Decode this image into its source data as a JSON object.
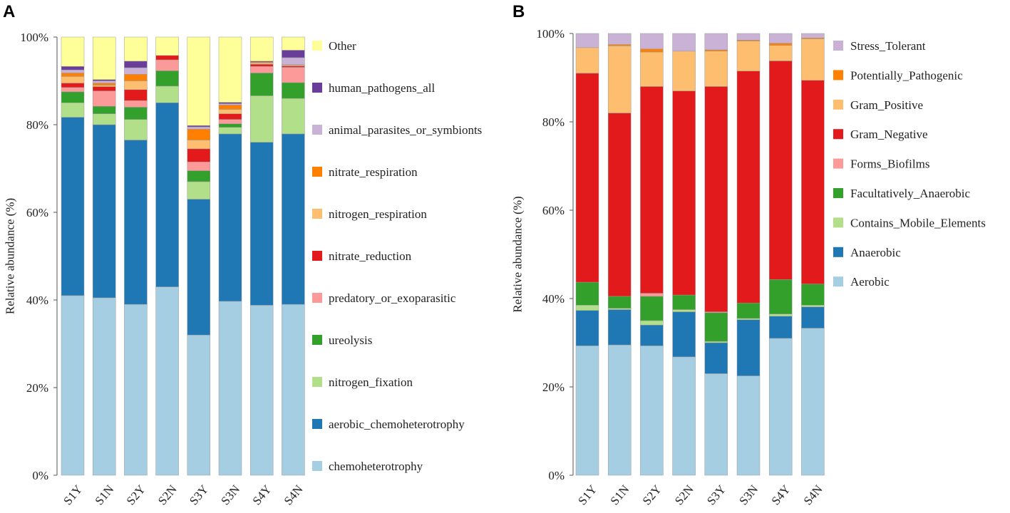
{
  "chart_data": [
    {
      "type": "bar",
      "stacked": true,
      "panel_label": "A",
      "ylabel": "Relative abundance (%)",
      "ylim": [
        0,
        100
      ],
      "yticks": [
        "0%",
        "20%",
        "40%",
        "60%",
        "80%",
        "100%"
      ],
      "categories": [
        "S1Y",
        "S1N",
        "S2Y",
        "S2N",
        "S3Y",
        "S3N",
        "S4Y",
        "S4N"
      ],
      "legend_position": "right",
      "series": [
        {
          "name": "chemoheterotrophy",
          "color": "#a6cee3",
          "values": [
            41.0,
            40.5,
            39.0,
            43.0,
            32.0,
            39.7,
            38.8,
            39.0
          ]
        },
        {
          "name": "aerobic_chemoheterotrophy",
          "color": "#1f78b4",
          "values": [
            40.7,
            39.5,
            37.5,
            42.0,
            31.0,
            38.2,
            37.2,
            38.9
          ]
        },
        {
          "name": "nitrogen_fixation",
          "color": "#b2df8a",
          "values": [
            3.3,
            2.5,
            4.7,
            3.8,
            4.0,
            1.5,
            10.6,
            8.1
          ]
        },
        {
          "name": "ureolysis",
          "color": "#33a02c",
          "values": [
            2.5,
            1.7,
            2.8,
            3.5,
            2.5,
            0.8,
            5.2,
            3.6
          ]
        },
        {
          "name": "predatory_or_exoparasitic",
          "color": "#fb9a99",
          "values": [
            1.0,
            3.5,
            1.5,
            2.5,
            2.0,
            1.0,
            1.5,
            3.5
          ]
        },
        {
          "name": "nitrate_reduction",
          "color": "#e31a1c",
          "values": [
            1.0,
            1.0,
            2.5,
            1.0,
            3.0,
            1.3,
            0.5,
            0.3
          ]
        },
        {
          "name": "nitrogen_respiration",
          "color": "#fdbf6f",
          "values": [
            1.5,
            0.3,
            2.0,
            0.0,
            2.0,
            1.0,
            0.3,
            0.2
          ]
        },
        {
          "name": "nitrate_respiration",
          "color": "#ff7f00",
          "values": [
            0.8,
            0.5,
            1.5,
            0.0,
            2.5,
            1.0,
            0.2,
            0.1
          ]
        },
        {
          "name": "animal_parasites_or_symbionts",
          "color": "#cab2d6",
          "values": [
            0.7,
            0.5,
            1.5,
            0.0,
            0.5,
            0.3,
            0.0,
            1.6
          ]
        },
        {
          "name": "human_pathogens_all",
          "color": "#6a3d9a",
          "values": [
            0.8,
            0.3,
            1.5,
            0.0,
            0.3,
            0.3,
            0.2,
            1.7
          ]
        },
        {
          "name": "Other",
          "color": "#ffff99",
          "values": [
            6.7,
            9.7,
            5.5,
            4.2,
            20.2,
            14.9,
            5.5,
            3.0
          ]
        }
      ]
    },
    {
      "type": "bar",
      "stacked": true,
      "panel_label": "B",
      "ylabel": "Relative abundance (%)",
      "ylim": [
        0,
        100
      ],
      "yticks": [
        "0%",
        "20%",
        "40%",
        "60%",
        "80%",
        "100%"
      ],
      "categories": [
        "S1Y",
        "S1N",
        "S2Y",
        "S2N",
        "S3Y",
        "S3N",
        "S4Y",
        "S4N"
      ],
      "legend_position": "right",
      "series": [
        {
          "name": "Aerobic",
          "color": "#a6cee3",
          "values": [
            29.3,
            29.5,
            29.3,
            26.8,
            23.0,
            22.5,
            31.0,
            33.3
          ]
        },
        {
          "name": "Anaerobic",
          "color": "#1f78b4",
          "values": [
            8.0,
            8.0,
            4.7,
            10.2,
            7.0,
            12.7,
            5.0,
            4.8
          ]
        },
        {
          "name": "Contains_Mobile_Elements",
          "color": "#b2df8a",
          "values": [
            1.2,
            0.3,
            1.0,
            0.5,
            0.3,
            0.3,
            0.5,
            0.4
          ]
        },
        {
          "name": "Facultatively_Anaerobic",
          "color": "#33a02c",
          "values": [
            5.2,
            2.7,
            5.5,
            3.3,
            6.5,
            3.5,
            7.8,
            4.8
          ]
        },
        {
          "name": "Forms_Biofilms",
          "color": "#fb9a99",
          "values": [
            0.0,
            0.0,
            0.7,
            0.0,
            0.2,
            0.0,
            0.0,
            0.0
          ]
        },
        {
          "name": "Gram_Negative",
          "color": "#e31a1c",
          "values": [
            47.3,
            41.5,
            46.8,
            46.2,
            51.0,
            52.5,
            49.5,
            46.1
          ]
        },
        {
          "name": "Gram_Positive",
          "color": "#fdbf6f",
          "values": [
            5.8,
            15.2,
            7.8,
            9.0,
            8.0,
            6.8,
            3.5,
            9.4
          ]
        },
        {
          "name": "Potentially_Pathogenic",
          "color": "#ff7f00",
          "values": [
            0.0,
            0.3,
            0.7,
            0.0,
            0.3,
            0.2,
            0.5,
            0.2
          ]
        },
        {
          "name": "Stress_Tolerant",
          "color": "#cab2d6",
          "values": [
            3.2,
            2.5,
            3.5,
            4.0,
            3.7,
            1.5,
            2.2,
            1.0
          ]
        }
      ]
    }
  ]
}
